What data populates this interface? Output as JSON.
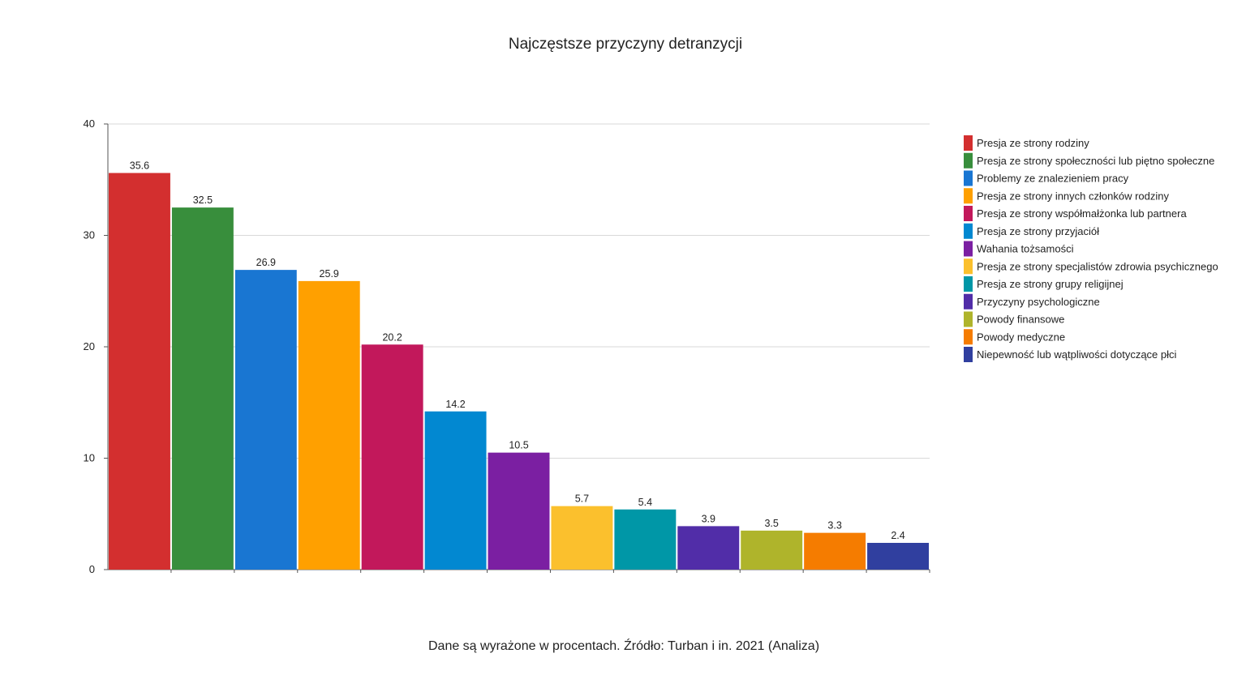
{
  "chart_data": {
    "type": "bar",
    "title": "Najczęstsze przyczyny detranzycji",
    "caption": "Dane są wyrażone w procentach. Źródło: Turban i in. 2021 (Analiza)",
    "xlabel": "",
    "ylabel": "",
    "ylim": [
      0,
      40
    ],
    "yticks": [
      0,
      10,
      20,
      30,
      40
    ],
    "grid": true,
    "legend_position": "right",
    "categories": [
      "Presja ze strony rodziny",
      "Presja ze strony społeczności lub piętno społeczne",
      "Problemy ze znalezieniem pracy",
      "Presja ze strony innych członków rodziny",
      "Presja ze strony współmałżonka lub partnera",
      "Presja ze strony przyjaciół",
      "Wahania tożsamości",
      "Presja ze strony specjalistów zdrowia psychicznego",
      "Presja ze strony grupy religijnej",
      "Przyczyny psychologiczne",
      "Powody finansowe",
      "Powody medyczne",
      "Niepewność lub wątpliwości dotyczące płci"
    ],
    "values": [
      35.6,
      32.5,
      26.9,
      25.9,
      20.2,
      14.2,
      10.5,
      5.7,
      5.4,
      3.9,
      3.5,
      3.3,
      2.4
    ],
    "value_labels": [
      "35.6",
      "32.5",
      "26.9",
      "25.9",
      "20.2",
      "14.2",
      "10.5",
      "5.7",
      "5.4",
      "3.9",
      "3.5",
      "3.3",
      "2.4"
    ],
    "colors": [
      "#d32f2f",
      "#388e3c",
      "#1976d2",
      "#ffa000",
      "#c2185b",
      "#0288d1",
      "#7b1fa2",
      "#fbc02d",
      "#0097a7",
      "#512da8",
      "#afb42b",
      "#f57c00",
      "#303f9f"
    ]
  }
}
